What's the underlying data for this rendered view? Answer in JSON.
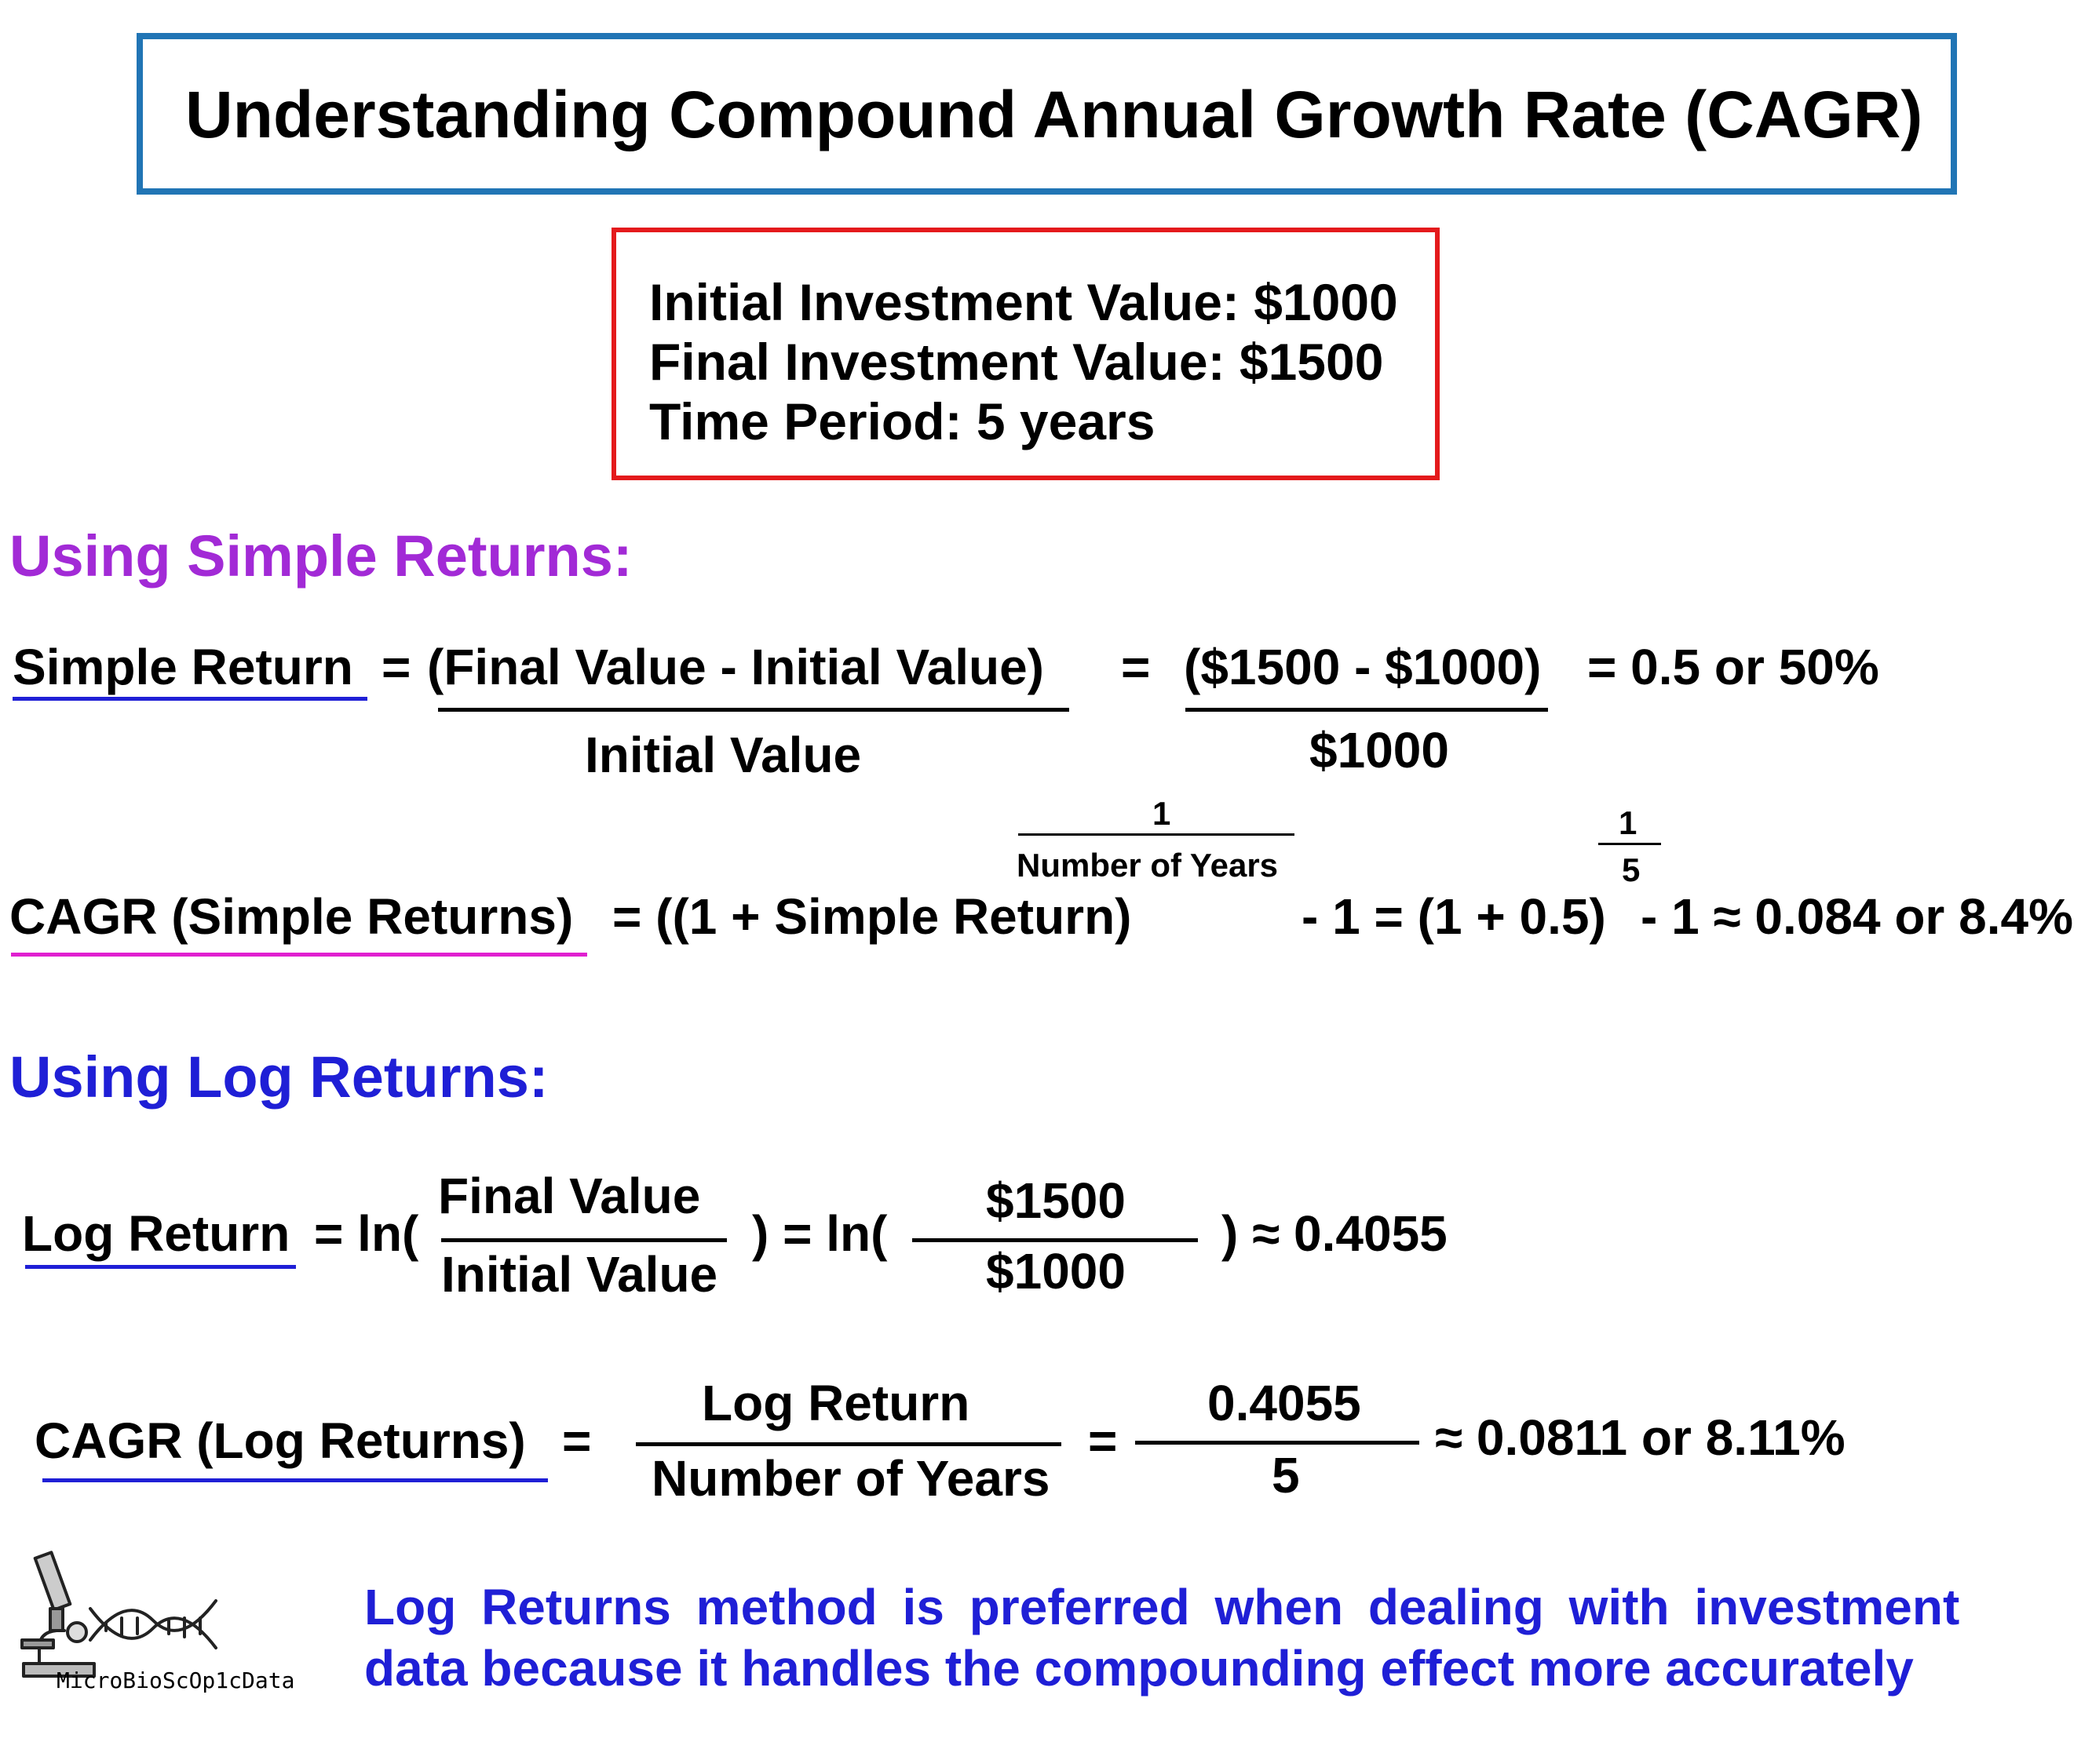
{
  "title": "Understanding Compound Annual Growth Rate (CAGR)",
  "inputs": {
    "initial": "Initial Investment Value: $1000",
    "final": "Final Investment Value: $1500",
    "period": "Time Period: 5 years"
  },
  "simple": {
    "heading": "Using Simple Returns:",
    "sr_label": "Simple Return",
    "sr_eq": "=",
    "sr_num": "(Final Value - Initial Value)",
    "sr_den": "Initial Value",
    "sr_eq2": "=",
    "sr_num_val": "($1500 - $1000)",
    "sr_den_val": "$1000",
    "sr_result": "= 0.5 or 50%",
    "cagr_label": "CAGR (Simple Returns)",
    "cagr_eq": "= ((1 + Simple Return)",
    "exp_num": "1",
    "exp_den": "Number of Years",
    "cagr_mid": "- 1 = (1 + 0.5)",
    "exp2_num": "1",
    "exp2_den": "5",
    "cagr_result": "- 1 ≈ 0.084 or 8.4%"
  },
  "log": {
    "heading": "Using Log Returns:",
    "lr_label": "Log Return",
    "lr_eq": "= ln(",
    "lr_num": "Final Value",
    "lr_den": "Initial Value",
    "lr_mid": ") =  ln(",
    "lr_num_val": "$1500",
    "lr_den_val": "$1000",
    "lr_result": ") ≈ 0.4055",
    "cagr_label": "CAGR (Log Returns)",
    "cagr_eq": "=",
    "cagr_num": "Log Return",
    "cagr_den": "Number of Years",
    "cagr_eq2": "=",
    "cagr_num_val": "0.4055",
    "cagr_den_val": "5",
    "cagr_result": "≈ 0.0811 or 8.11%"
  },
  "logo": {
    "text": "MicroBioScOp1cData",
    "icon": "microscope-dna-icon"
  },
  "note": {
    "line1": "Log Returns method is preferred when dealing with investment",
    "line2": "data because it handles the compounding effect more accurately"
  },
  "colors": {
    "title_border": "#2175b5",
    "info_border": "#e41a1c",
    "simple_heading": "#a22ad6",
    "log_heading": "#1f1fd6",
    "underline_blue": "#1f1fd6",
    "underline_magenta": "#e020d0"
  }
}
